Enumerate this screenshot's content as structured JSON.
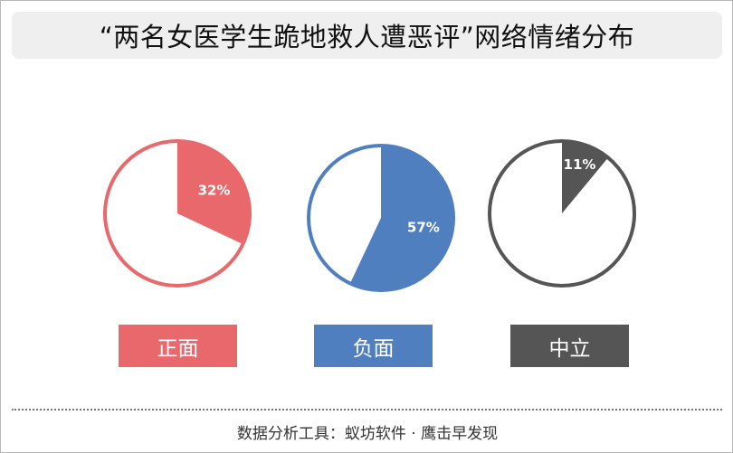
{
  "title": "“两名女医学生跪地救人遭恶评”网络情绪分布",
  "chart_data": {
    "type": "pie",
    "charts": [
      {
        "label": "正面",
        "value": 32,
        "value_label": "32%",
        "color": "#e8686b"
      },
      {
        "label": "负面",
        "value": 57,
        "value_label": "57%",
        "color": "#4f7fbf"
      },
      {
        "label": "中立",
        "value": 11,
        "value_label": "11%",
        "color": "#555555"
      }
    ]
  },
  "footer": "数据分析工具：蚁坊软件 · 鹰击早发现"
}
